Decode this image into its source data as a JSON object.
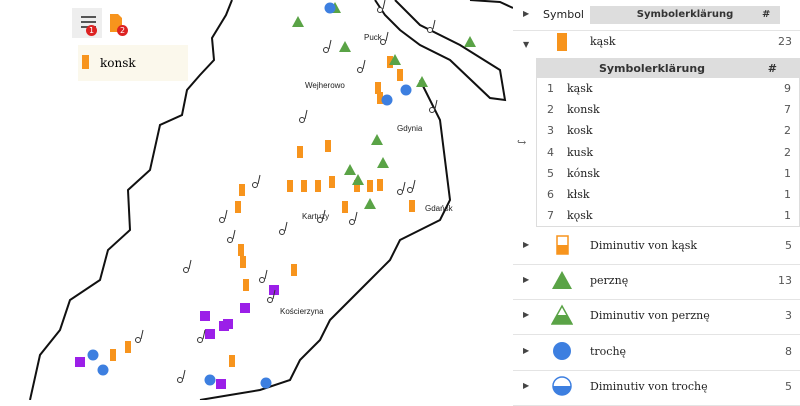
{
  "toolbar": {
    "badges": [
      1,
      2
    ]
  },
  "popup": {
    "text": "konsk"
  },
  "map": {
    "labels": [
      "Puck",
      "Wejherowo",
      "Gdynia",
      "Kartuzy",
      "Gdańsk",
      "Kościerzyna"
    ]
  },
  "legend": {
    "header": {
      "symbol": "Symbol",
      "explanation": "Symbolerklärung",
      "count": "#"
    },
    "groups": [
      {
        "name": "kąsk",
        "count": 23,
        "subtable": {
          "header": {
            "explanation": "Symbolerklärung",
            "count": "#"
          },
          "rows": [
            {
              "index": 1,
              "name": "kąsk",
              "count": 9
            },
            {
              "index": 2,
              "name": "konsk",
              "count": 7
            },
            {
              "index": 3,
              "name": "kosk",
              "count": 2
            },
            {
              "index": 4,
              "name": "kusk",
              "count": 2
            },
            {
              "index": 5,
              "name": "kónsk",
              "count": 1
            },
            {
              "index": 6,
              "name": "kłsk",
              "count": 1
            },
            {
              "index": 7,
              "name": "kǫsk",
              "count": 1
            }
          ]
        }
      },
      {
        "name": "Diminutiv von kąsk",
        "count": 5
      },
      {
        "name": "perznę",
        "count": 13
      },
      {
        "name": "Diminutiv von perznę",
        "count": 3
      },
      {
        "name": "trochę",
        "count": 8
      },
      {
        "name": "Diminutiv von trochę",
        "count": 5
      }
    ]
  }
}
